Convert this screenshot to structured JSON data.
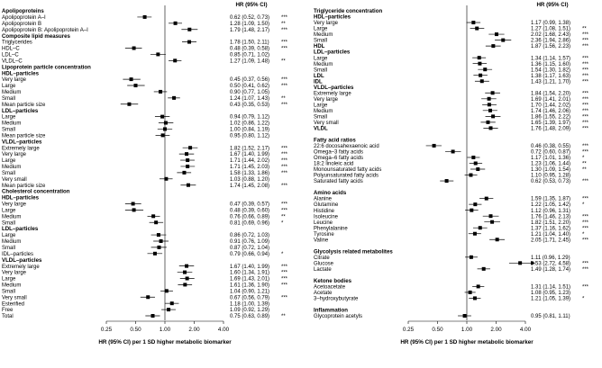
{
  "chart_data": [
    {
      "type": "forest",
      "header": "HR (95% CI)",
      "xlabel": "HR (95% CI) per 1 SD higher metabolic biomarker",
      "x_scale": "log2",
      "xlim": [
        0.25,
        4.0
      ],
      "x_ticks": [
        "0.25",
        "0.50",
        "1.00",
        "2.00",
        "4.00"
      ],
      "reference_line": 1.0,
      "rows": [
        {
          "kind": "heading",
          "label": "Apolipoproteins"
        },
        {
          "label": "Apolipoprotein A–I",
          "hr": 0.62,
          "lo": 0.52,
          "hi": 0.73,
          "text": "0.62 (0.52, 0.73)",
          "sig": "***"
        },
        {
          "label": "Apolipoprotein B",
          "hr": 1.28,
          "lo": 1.09,
          "hi": 1.5,
          "text": "1.28 (1.09, 1.50)",
          "sig": "**"
        },
        {
          "label": "Apolipoprotein B: Apolipoprotein A–I",
          "hr": 1.79,
          "lo": 1.48,
          "hi": 2.17,
          "text": "1.79 (1.48, 2.17)",
          "sig": "***"
        },
        {
          "kind": "heading",
          "label": "Composite lipid measures"
        },
        {
          "label": "Triglycerides",
          "hr": 1.78,
          "lo": 1.5,
          "hi": 2.11,
          "text": "1.78 (1.50, 2.11)",
          "sig": "***"
        },
        {
          "label": "HDL–C",
          "hr": 0.48,
          "lo": 0.39,
          "hi": 0.58,
          "text": "0.48 (0.39, 0.58)",
          "sig": "***"
        },
        {
          "label": "LDL–C",
          "hr": 0.85,
          "lo": 0.71,
          "hi": 1.02,
          "text": "0.85 (0.71, 1.02)",
          "sig": ""
        },
        {
          "label": "VLDL–C",
          "hr": 1.27,
          "lo": 1.09,
          "hi": 1.48,
          "text": "1.27 (1.09, 1.48)",
          "sig": "**"
        },
        {
          "kind": "heading",
          "label": "Lipoprotein particle concentration"
        },
        {
          "kind": "subheading",
          "label": "HDL–particles"
        },
        {
          "label": "Very large",
          "hr": 0.45,
          "lo": 0.37,
          "hi": 0.56,
          "text": "0.45 (0.37, 0.56)",
          "sig": "***"
        },
        {
          "label": "Large",
          "hr": 0.5,
          "lo": 0.41,
          "hi": 0.62,
          "text": "0.50 (0.41, 0.62)",
          "sig": "***"
        },
        {
          "label": "Medium",
          "hr": 0.9,
          "lo": 0.77,
          "hi": 1.05,
          "text": "0.90 (0.77, 1.05)",
          "sig": ""
        },
        {
          "label": "Small",
          "hr": 1.24,
          "lo": 1.07,
          "hi": 1.43,
          "text": "1.24 (1.07, 1.43)",
          "sig": "**"
        },
        {
          "label": "Mean particle size",
          "hr": 0.43,
          "lo": 0.35,
          "hi": 0.53,
          "text": "0.43 (0.35, 0.53)",
          "sig": "***"
        },
        {
          "kind": "subheading",
          "label": "LDL–particles"
        },
        {
          "label": "Large",
          "hr": 0.94,
          "lo": 0.79,
          "hi": 1.12,
          "text": "0.94 (0.79, 1.12)",
          "sig": ""
        },
        {
          "label": "Medium",
          "hr": 1.02,
          "lo": 0.86,
          "hi": 1.22,
          "text": "1.02 (0.86, 1.22)",
          "sig": ""
        },
        {
          "label": "Small",
          "hr": 1.0,
          "lo": 0.84,
          "hi": 1.19,
          "text": "1.00 (0.84, 1.19)",
          "sig": ""
        },
        {
          "label": "Mean particle size",
          "hr": 0.95,
          "lo": 0.8,
          "hi": 1.12,
          "text": "0.95 (0.80, 1.12)",
          "sig": ""
        },
        {
          "kind": "subheading",
          "label": "VLDL–particles"
        },
        {
          "label": "Extremely large",
          "hr": 1.82,
          "lo": 1.52,
          "hi": 2.17,
          "text": "1.82 (1.52, 2.17)",
          "sig": "***"
        },
        {
          "label": "Very large",
          "hr": 1.67,
          "lo": 1.4,
          "hi": 1.99,
          "text": "1.67 (1.40, 1.99)",
          "sig": "***"
        },
        {
          "label": "Large",
          "hr": 1.71,
          "lo": 1.44,
          "hi": 2.02,
          "text": "1.71 (1.44, 2.02)",
          "sig": "***"
        },
        {
          "label": "Medium",
          "hr": 1.71,
          "lo": 1.45,
          "hi": 2.03,
          "text": "1.71 (1.45, 2.03)",
          "sig": "***"
        },
        {
          "label": "Small",
          "hr": 1.58,
          "lo": 1.33,
          "hi": 1.86,
          "text": "1.58 (1.33, 1.86)",
          "sig": "***"
        },
        {
          "label": "Very small",
          "hr": 1.03,
          "lo": 0.88,
          "hi": 1.2,
          "text": "1.03 (0.88, 1.20)",
          "sig": ""
        },
        {
          "label": "Mean particle size",
          "hr": 1.74,
          "lo": 1.45,
          "hi": 2.08,
          "text": "1.74 (1.45, 2.08)",
          "sig": "***"
        },
        {
          "kind": "heading",
          "label": "Cholesterol concentration"
        },
        {
          "kind": "subheading",
          "label": "HDL–particles"
        },
        {
          "label": "Very large",
          "hr": 0.47,
          "lo": 0.39,
          "hi": 0.57,
          "text": "0.47 (0.39, 0.57)",
          "sig": "***"
        },
        {
          "label": "Large",
          "hr": 0.48,
          "lo": 0.39,
          "hi": 0.6,
          "text": "0.48 (0.39, 0.60)",
          "sig": "***"
        },
        {
          "label": "Medium",
          "hr": 0.76,
          "lo": 0.66,
          "hi": 0.89,
          "text": "0.76 (0.66, 0.89)",
          "sig": "**"
        },
        {
          "label": "Small",
          "hr": 0.81,
          "lo": 0.69,
          "hi": 0.96,
          "text": "0.81 (0.69, 0.96)",
          "sig": "*"
        },
        {
          "kind": "subheading",
          "label": "LDL–particles"
        },
        {
          "label": "Large",
          "hr": 0.86,
          "lo": 0.72,
          "hi": 1.03,
          "text": "0.86 (0.72, 1.03)",
          "sig": ""
        },
        {
          "label": "Medium",
          "hr": 0.91,
          "lo": 0.76,
          "hi": 1.09,
          "text": "0.91 (0.76, 1.09)",
          "sig": ""
        },
        {
          "label": "Small",
          "hr": 0.87,
          "lo": 0.72,
          "hi": 1.04,
          "text": "0.87 (0.72, 1.04)",
          "sig": ""
        },
        {
          "label": "IDL–particles",
          "hr": 0.79,
          "lo": 0.66,
          "hi": 0.94,
          "text": "0.79 (0.66, 0.94)",
          "sig": "*"
        },
        {
          "kind": "subheading",
          "label": "VLDL–particles"
        },
        {
          "label": "Extremely large",
          "hr": 1.67,
          "lo": 1.4,
          "hi": 1.99,
          "text": "1.67 (1.40, 1.99)",
          "sig": "***"
        },
        {
          "label": "Very large",
          "hr": 1.6,
          "lo": 1.34,
          "hi": 1.91,
          "text": "1.60 (1.34, 1.91)",
          "sig": "***"
        },
        {
          "label": "Large",
          "hr": 1.69,
          "lo": 1.43,
          "hi": 2.01,
          "text": "1.69 (1.43, 2.01)",
          "sig": "***"
        },
        {
          "label": "Medium",
          "hr": 1.61,
          "lo": 1.36,
          "hi": 1.9,
          "text": "1.61 (1.36, 1.90)",
          "sig": "***"
        },
        {
          "label": "Small",
          "hr": 1.04,
          "lo": 0.9,
          "hi": 1.21,
          "text": "1.04 (0.90, 1.21)",
          "sig": ""
        },
        {
          "label": "Very small",
          "hr": 0.67,
          "lo": 0.56,
          "hi": 0.79,
          "text": "0.67 (0.56, 0.79)",
          "sig": "***"
        },
        {
          "label": "Esterified",
          "hr": 1.18,
          "lo": 1.0,
          "hi": 1.39,
          "text": "1.18 (1.00, 1.39)",
          "sig": ""
        },
        {
          "label": "Free",
          "hr": 1.09,
          "lo": 0.92,
          "hi": 1.29,
          "text": "1.09 (0.92, 1.29)",
          "sig": ""
        },
        {
          "label": "Total",
          "hr": 0.75,
          "lo": 0.63,
          "hi": 0.89,
          "text": "0.75 (0.63, 0.89)",
          "sig": "**"
        }
      ]
    },
    {
      "type": "forest",
      "header": "HR (95% CI)",
      "xlabel": "HR (95% CI) per 1 SD higher metabolic biomarker",
      "x_scale": "log2",
      "xlim": [
        0.25,
        4.0
      ],
      "x_ticks": [
        "0.25",
        "0.50",
        "1.00",
        "2.00",
        "4.00"
      ],
      "reference_line": 1.0,
      "rows": [
        {
          "kind": "heading",
          "label": "Triglyceride concentration"
        },
        {
          "kind": "subheading",
          "label": "HDL–particles"
        },
        {
          "label": "Very large",
          "hr": 1.17,
          "lo": 0.99,
          "hi": 1.38,
          "text": "1.17 (0.99, 1.38)",
          "sig": ""
        },
        {
          "label": "Large",
          "hr": 1.27,
          "lo": 1.08,
          "hi": 1.51,
          "text": "1.27 (1.08, 1.51)",
          "sig": "**"
        },
        {
          "label": "Medium",
          "hr": 2.02,
          "lo": 1.68,
          "hi": 2.43,
          "text": "2.02 (1.68, 2.43)",
          "sig": "***"
        },
        {
          "label": "Small",
          "hr": 2.36,
          "lo": 1.94,
          "hi": 2.86,
          "text": "2.36 (1.94, 2.86)",
          "sig": "***"
        },
        {
          "label": "HDL",
          "hr": 1.87,
          "lo": 1.56,
          "hi": 2.23,
          "text": "1.87 (1.56, 2.23)",
          "sig": "***",
          "bold": true
        },
        {
          "kind": "subheading",
          "label": "LDL–particles"
        },
        {
          "label": "Large",
          "hr": 1.34,
          "lo": 1.14,
          "hi": 1.57,
          "text": "1.34 (1.14, 1.57)",
          "sig": "***"
        },
        {
          "label": "Medium",
          "hr": 1.36,
          "lo": 1.15,
          "hi": 1.6,
          "text": "1.36 (1.15, 1.60)",
          "sig": "***"
        },
        {
          "label": "Small",
          "hr": 1.54,
          "lo": 1.3,
          "hi": 1.82,
          "text": "1.54 (1.30, 1.82)",
          "sig": "***"
        },
        {
          "label": "LDL",
          "hr": 1.38,
          "lo": 1.17,
          "hi": 1.63,
          "text": "1.38 (1.17, 1.63)",
          "sig": "***",
          "bold": true
        },
        {
          "label": "IDL",
          "hr": 1.43,
          "lo": 1.21,
          "hi": 1.7,
          "text": "1.43 (1.21, 1.70)",
          "sig": "***",
          "bold": true
        },
        {
          "kind": "subheading",
          "label": "VLDL–particles"
        },
        {
          "label": "Extremely large",
          "hr": 1.84,
          "lo": 1.54,
          "hi": 2.2,
          "text": "1.84 (1.54, 2.20)",
          "sig": "***"
        },
        {
          "label": "Very large",
          "hr": 1.69,
          "lo": 1.41,
          "hi": 2.01,
          "text": "1.69 (1.41, 2.01)",
          "sig": "***"
        },
        {
          "label": "Large",
          "hr": 1.7,
          "lo": 1.44,
          "hi": 2.02,
          "text": "1.70 (1.44, 2.02)",
          "sig": "***"
        },
        {
          "label": "Medium",
          "hr": 1.74,
          "lo": 1.46,
          "hi": 2.06,
          "text": "1.74 (1.46, 2.06)",
          "sig": "***"
        },
        {
          "label": "Small",
          "hr": 1.86,
          "lo": 1.55,
          "hi": 2.22,
          "text": "1.86 (1.55, 2.22)",
          "sig": "***"
        },
        {
          "label": "Very small",
          "hr": 1.65,
          "lo": 1.39,
          "hi": 1.97,
          "text": "1.65 (1.39, 1.97)",
          "sig": "***"
        },
        {
          "label": "VLDL",
          "hr": 1.76,
          "lo": 1.48,
          "hi": 2.09,
          "text": "1.76 (1.48, 2.09)",
          "sig": "***",
          "bold": true
        },
        {
          "kind": "gap"
        },
        {
          "kind": "heading",
          "label": "Fatty acid ratios"
        },
        {
          "label": "22:6 docosahexaenoic acid",
          "hr": 0.46,
          "lo": 0.38,
          "hi": 0.55,
          "text": "0.46 (0.38, 0.55)",
          "sig": "***"
        },
        {
          "label": "Omega–3 fatty acids",
          "hr": 0.72,
          "lo": 0.6,
          "hi": 0.87,
          "text": "0.72 (0.60, 0.87)",
          "sig": "***"
        },
        {
          "label": "Omega–6 fatty acids",
          "hr": 1.17,
          "lo": 1.01,
          "hi": 1.36,
          "text": "1.17 (1.01, 1.36)",
          "sig": "*"
        },
        {
          "label": "18:2 linoleic acid",
          "hr": 1.23,
          "lo": 1.06,
          "hi": 1.44,
          "text": "1.23 (1.06, 1.44)",
          "sig": "**"
        },
        {
          "label": "Monounsaturated fatty acids",
          "hr": 1.3,
          "lo": 1.09,
          "hi": 1.54,
          "text": "1.30 (1.09, 1.54)",
          "sig": "**"
        },
        {
          "label": "Polyunsaturated fatty acids",
          "hr": 1.1,
          "lo": 0.95,
          "hi": 1.28,
          "text": "1.10 (0.95, 1.28)",
          "sig": ""
        },
        {
          "label": "Saturated fatty acids",
          "hr": 0.62,
          "lo": 0.53,
          "hi": 0.73,
          "text": "0.62 (0.53, 0.73)",
          "sig": "***"
        },
        {
          "kind": "gap"
        },
        {
          "kind": "heading",
          "label": "Amino acids"
        },
        {
          "label": "Alanine",
          "hr": 1.59,
          "lo": 1.35,
          "hi": 1.87,
          "text": "1.59 (1.35, 1.87)",
          "sig": "***"
        },
        {
          "label": "Glutamine",
          "hr": 1.22,
          "lo": 1.05,
          "hi": 1.42,
          "text": "1.22 (1.05, 1.42)",
          "sig": "*"
        },
        {
          "label": "Histidine",
          "hr": 1.12,
          "lo": 0.96,
          "hi": 1.31,
          "text": "1.12 (0.96, 1.31)",
          "sig": ""
        },
        {
          "label": "Isoleucine",
          "hr": 1.76,
          "lo": 1.46,
          "hi": 2.13,
          "text": "1.76 (1.46, 2.13)",
          "sig": "***"
        },
        {
          "label": "Leucine",
          "hr": 1.82,
          "lo": 1.51,
          "hi": 2.2,
          "text": "1.82 (1.51, 2.20)",
          "sig": "***"
        },
        {
          "label": "Phenylalanine",
          "hr": 1.37,
          "lo": 1.16,
          "hi": 1.62,
          "text": "1.37 (1.16, 1.62)",
          "sig": "***"
        },
        {
          "label": "Tyrosine",
          "hr": 1.21,
          "lo": 1.04,
          "hi": 1.4,
          "text": "1.21 (1.04, 1.40)",
          "sig": "*"
        },
        {
          "label": "Valine",
          "hr": 2.05,
          "lo": 1.71,
          "hi": 2.45,
          "text": "2.05 (1.71, 2.45)",
          "sig": "***"
        },
        {
          "kind": "gap"
        },
        {
          "kind": "heading",
          "label": "Glycolysis related metabolites"
        },
        {
          "label": "Citrate",
          "hr": 1.11,
          "lo": 0.96,
          "hi": 1.29,
          "text": "1.11 (0.96, 1.29)",
          "sig": ""
        },
        {
          "label": "Glucose",
          "hr": 3.53,
          "lo": 2.72,
          "hi": 4.58,
          "text": "3.53 (2.72, 4.58)",
          "sig": "***",
          "arrow": true
        },
        {
          "label": "Lactate",
          "hr": 1.49,
          "lo": 1.28,
          "hi": 1.74,
          "text": "1.49 (1.28, 1.74)",
          "sig": "***"
        },
        {
          "kind": "gap"
        },
        {
          "kind": "heading",
          "label": "Ketone bodies"
        },
        {
          "label": "Acetoacetate",
          "hr": 1.31,
          "lo": 1.14,
          "hi": 1.51,
          "text": "1.31 (1.14, 1.51)",
          "sig": "***"
        },
        {
          "label": "Acetate",
          "hr": 1.08,
          "lo": 0.95,
          "hi": 1.23,
          "text": "1.08 (0.95, 1.23)",
          "sig": ""
        },
        {
          "label": "3–hydroxybutyrate",
          "hr": 1.21,
          "lo": 1.05,
          "hi": 1.39,
          "text": "1.21 (1.05, 1.39)",
          "sig": "*"
        },
        {
          "kind": "gap"
        },
        {
          "kind": "heading",
          "label": "Inflammation"
        },
        {
          "label": "Glycoprotein acetyls",
          "hr": 0.95,
          "lo": 0.81,
          "hi": 1.11,
          "text": "0.95 (0.81, 1.11)",
          "sig": ""
        }
      ]
    }
  ]
}
